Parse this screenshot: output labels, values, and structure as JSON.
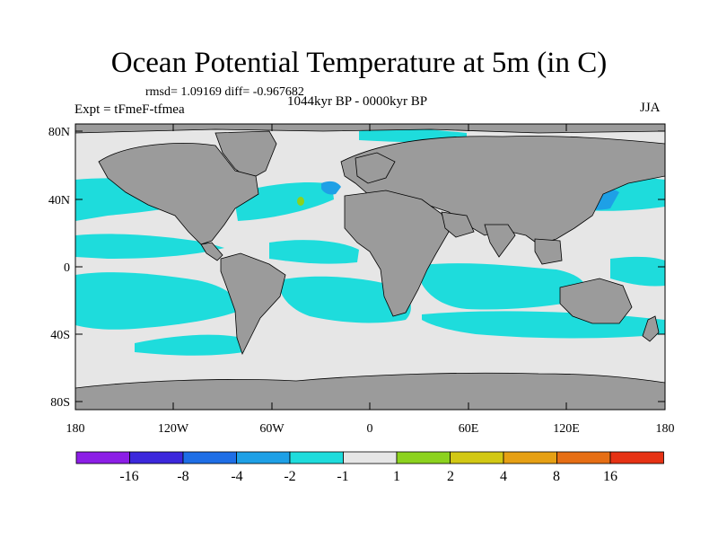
{
  "title": "Ocean Potential Temperature at 5m (in C)",
  "stats": "rmsd= 1.09169 diff= -0.967682",
  "period": "1044kyr BP - 0000kyr BP",
  "experiment": "Expt = tFmeF-tfmea",
  "season": "JJA",
  "axes": {
    "lat_ticks": [
      "80N",
      "40N",
      "0",
      "40S",
      "80S"
    ],
    "lon_ticks": [
      "180",
      "120W",
      "60W",
      "0",
      "60E",
      "120E",
      "180"
    ]
  },
  "colorbar": {
    "labels": [
      "-16",
      "-8",
      "-4",
      "-2",
      "-1",
      "1",
      "2",
      "4",
      "8",
      "16"
    ],
    "colors": [
      "#8c1ee6",
      "#3c28dc",
      "#1e6ee6",
      "#1ea0e6",
      "#1edcdc",
      "#e6e6e6",
      "#8cd21e",
      "#d2c814",
      "#e6a014",
      "#e66e14",
      "#e63214"
    ]
  },
  "palette": {
    "land": "#9b9b9b",
    "ocean_neutral": "#e6e6e6",
    "cool_anomaly": "#1edcdc",
    "strong_cool": "#1ea0e6",
    "warm_anomaly": "#8cd21e"
  }
}
